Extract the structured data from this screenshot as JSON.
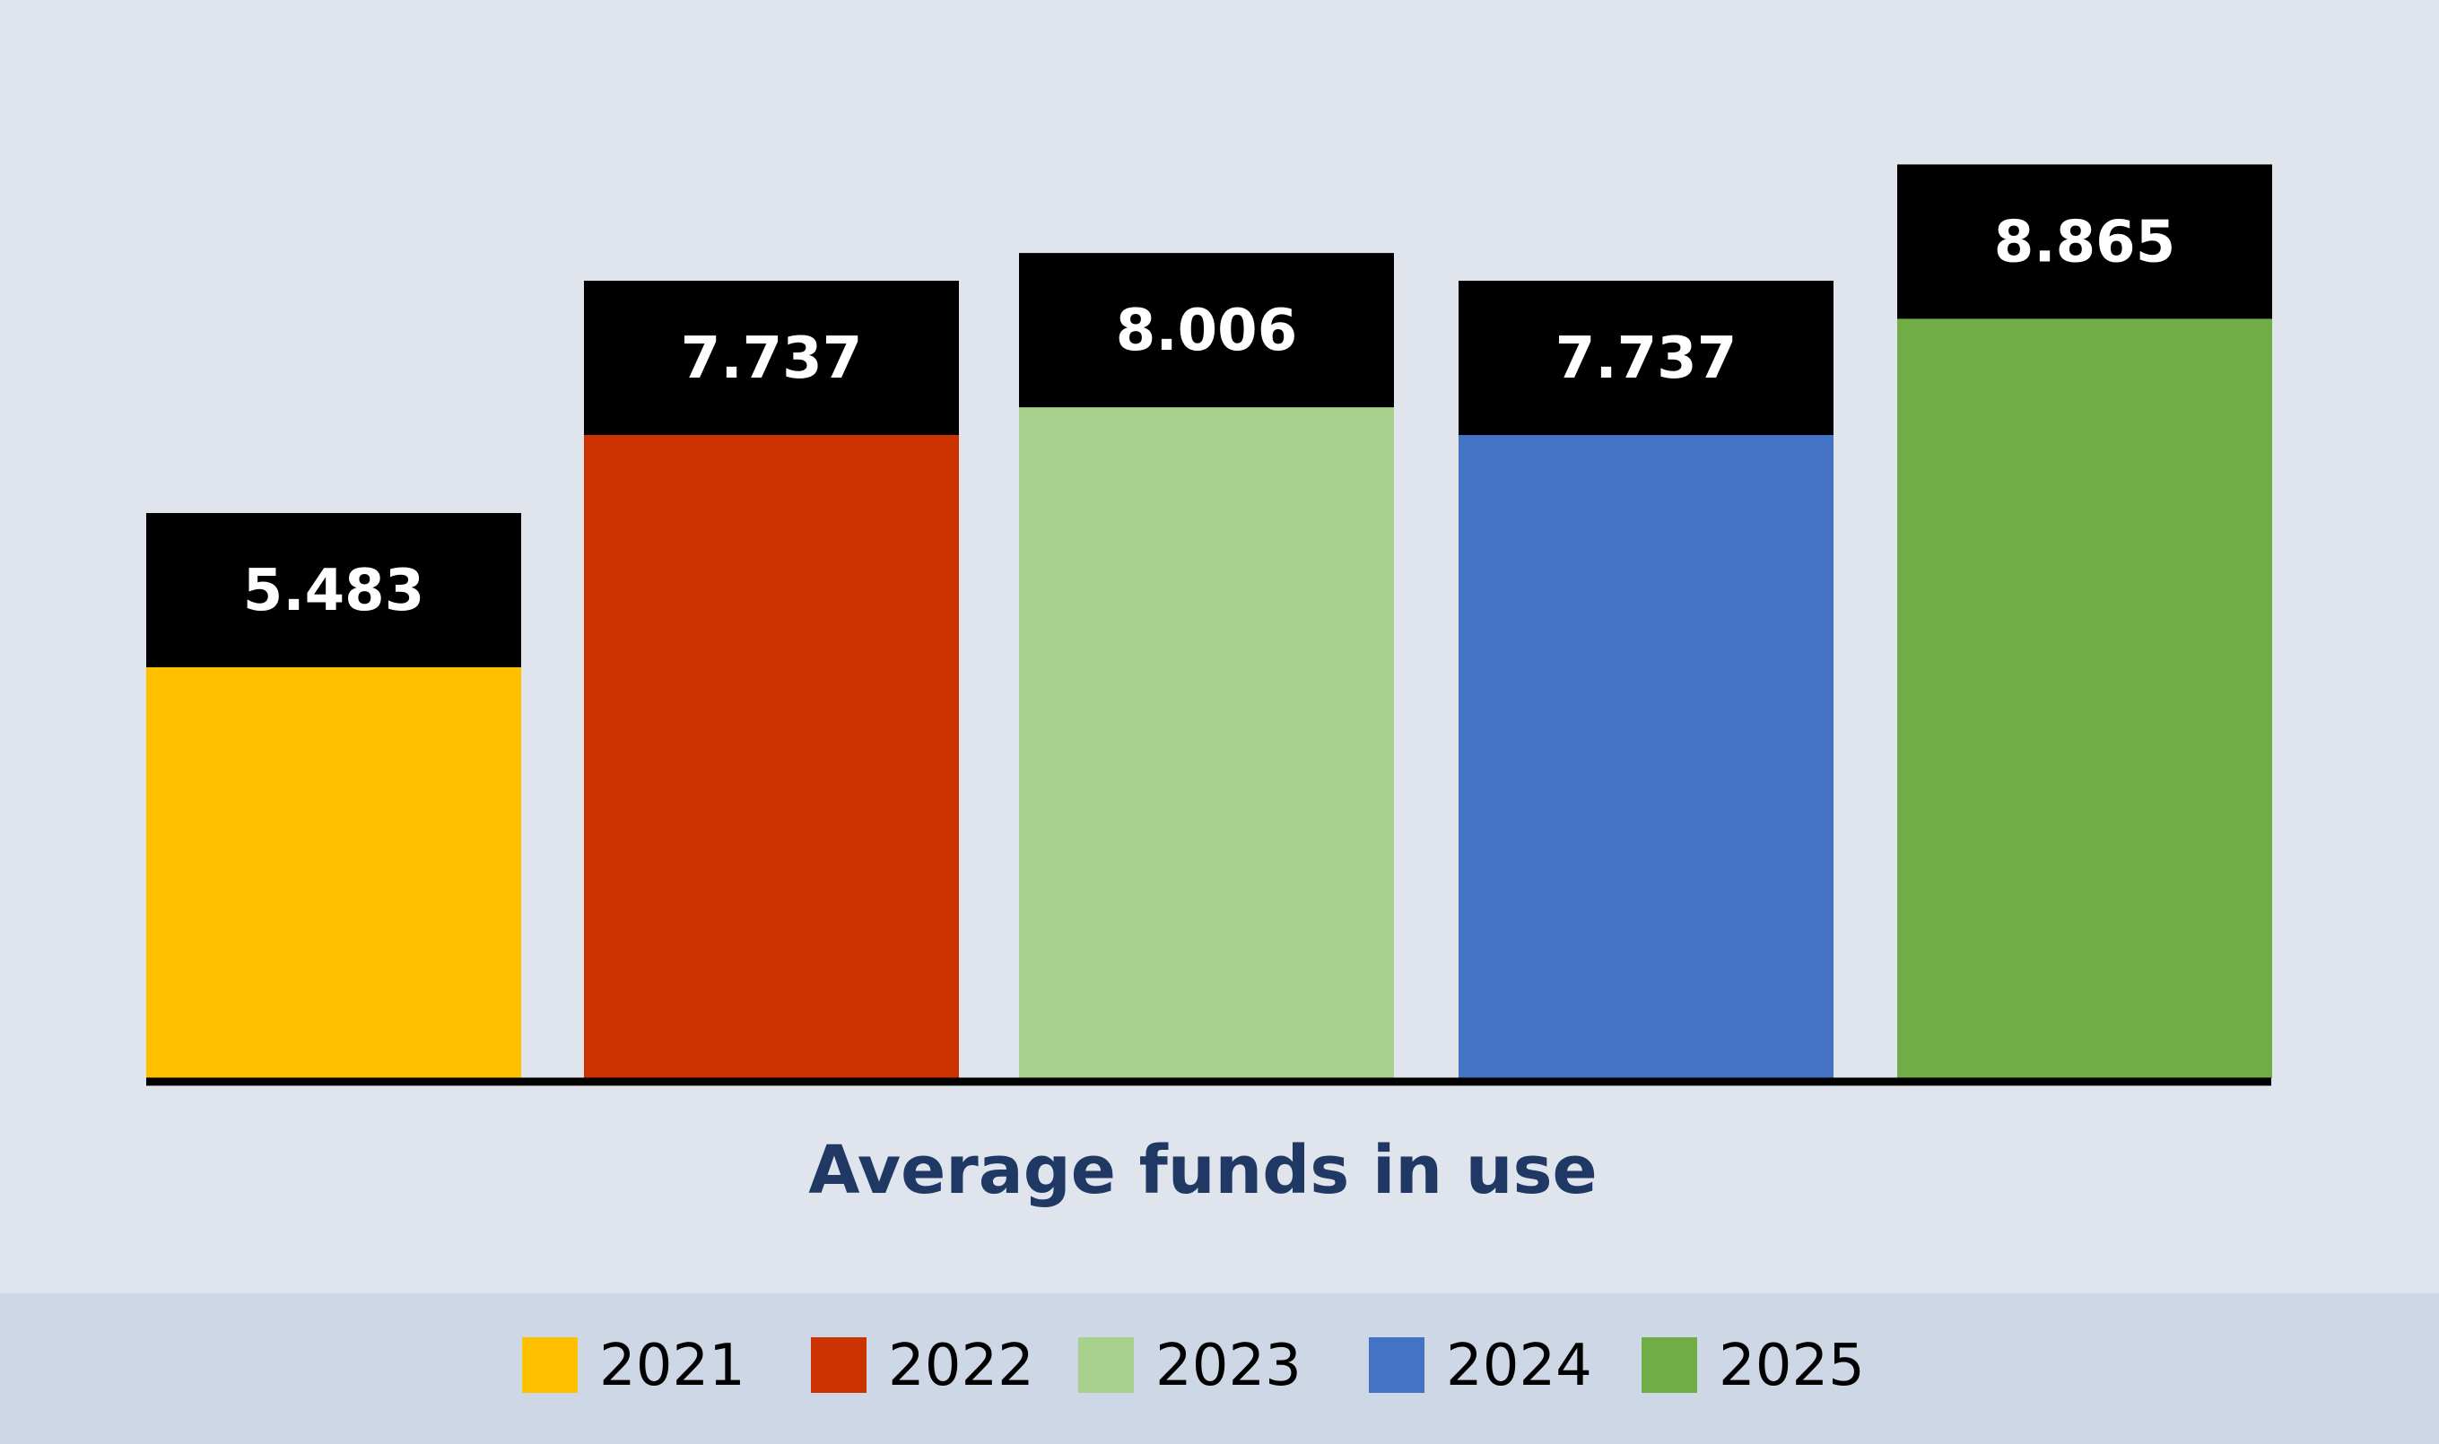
{
  "chart_data": {
    "type": "bar",
    "title": "",
    "xlabel": "Average funds in use",
    "ylabel": "",
    "ylim": [
      0,
      10.2
    ],
    "grid": false,
    "legend_position": "bottom",
    "categories": [
      "2021",
      "2022",
      "2023",
      "2024",
      "2025"
    ],
    "values": [
      5.483,
      7.737,
      8.006,
      7.737,
      8.865
    ],
    "value_labels": [
      "5.483",
      "7.737",
      "8.006",
      "7.737",
      "8.865"
    ],
    "colors": [
      "#FFC000",
      "#CC3300",
      "#A9D18E",
      "#4472C4",
      "#70AD47"
    ],
    "label_box_color": "#000000",
    "background_color": "#E0E5ED",
    "legend_band_color": "#CDD7E6"
  }
}
